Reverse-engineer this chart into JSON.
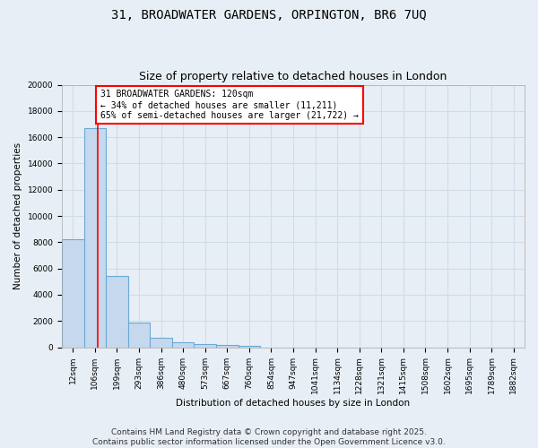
{
  "title_line1": "31, BROADWATER GARDENS, ORPINGTON, BR6 7UQ",
  "title_line2": "Size of property relative to detached houses in London",
  "xlabel": "Distribution of detached houses by size in London",
  "ylabel": "Number of detached properties",
  "bin_labels": [
    "12sqm",
    "106sqm",
    "199sqm",
    "293sqm",
    "386sqm",
    "480sqm",
    "573sqm",
    "667sqm",
    "760sqm",
    "854sqm",
    "947sqm",
    "1041sqm",
    "1134sqm",
    "1228sqm",
    "1321sqm",
    "1415sqm",
    "1508sqm",
    "1602sqm",
    "1695sqm",
    "1789sqm",
    "1882sqm"
  ],
  "bar_heights": [
    8200,
    16700,
    5400,
    1850,
    750,
    400,
    250,
    150,
    80,
    0,
    0,
    0,
    0,
    0,
    0,
    0,
    0,
    0,
    0,
    0,
    0
  ],
  "bar_color": "#c5d8ee",
  "bar_edge_color": "#6aaad4",
  "red_line_x": 1.14,
  "annotation_text": "31 BROADWATER GARDENS: 120sqm\n← 34% of detached houses are smaller (11,211)\n65% of semi-detached houses are larger (21,722) →",
  "annotation_box_color": "#ffffff",
  "annotation_box_edge_color": "red",
  "ylim": [
    0,
    20000
  ],
  "yticks": [
    0,
    2000,
    4000,
    6000,
    8000,
    10000,
    12000,
    14000,
    16000,
    18000,
    20000
  ],
  "footer_line1": "Contains HM Land Registry data © Crown copyright and database right 2025.",
  "footer_line2": "Contains public sector information licensed under the Open Government Licence v3.0.",
  "background_color": "#e8eef5",
  "grid_color": "#d0dce8",
  "title_fontsize": 10,
  "subtitle_fontsize": 9,
  "axis_label_fontsize": 7.5,
  "tick_fontsize": 6.5,
  "annotation_fontsize": 7,
  "footer_fontsize": 6.5
}
